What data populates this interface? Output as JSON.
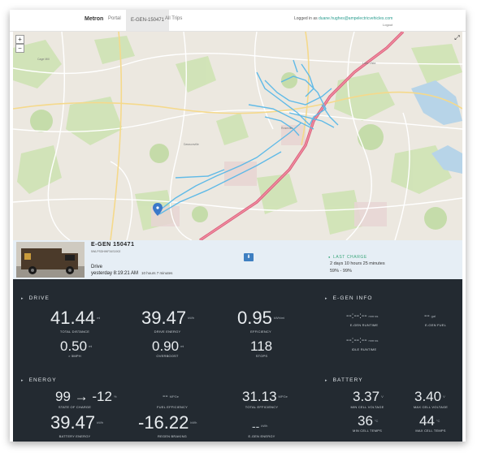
{
  "topbar": {
    "brand": "Metron",
    "nav": [
      {
        "label": "Portal"
      },
      {
        "label": "E-GEN-150471"
      },
      {
        "label": "All Trips"
      }
    ],
    "login_prefix": "Logged in as",
    "login_email": "duane.hughes@ampelectricvehicles.com",
    "logout": "Logout"
  },
  "map": {
    "zoom_in": "+",
    "zoom_out": "−",
    "fullscreen_icon": "expand-icon",
    "route_color": "#59b8e8",
    "marker_color": "#3a78c9"
  },
  "vehicle": {
    "title": "E-GEN 150471",
    "vin": "5WLPSDHWF34S1902",
    "status": "Drive",
    "time": "yesterday 8:19:21 AM",
    "duration": "10 hours 7 minutes",
    "download_icon": "download-icon",
    "last_charge": {
      "title": "LAST CHARGE",
      "ago": "2 days 10 hours 25 minutes",
      "range": "59% - 99%"
    }
  },
  "drive": {
    "title": "DRIVE",
    "total_distance": {
      "value": "41.44",
      "unit": "mi",
      "label": "TOTAL DISTANCE"
    },
    "drive_energy": {
      "value": "39.47",
      "unit": "kWh",
      "label": "DRIVE ENERGY"
    },
    "efficiency": {
      "value": "0.95",
      "unit": "kWh/mi",
      "label": "EFFICIENCY"
    },
    "over_5mph": {
      "value": "0.50",
      "unit": "mi",
      "label": "> 5MPH"
    },
    "overboost": {
      "value": "0.90",
      "unit": "mi",
      "label": "OVERBOOST"
    },
    "stops": {
      "value": "118",
      "label": "STOPS"
    }
  },
  "egen": {
    "title": "E-GEN INFO",
    "runtime": {
      "value": "--:--:--",
      "unit": "mm:ss",
      "label": "E-GEN RUNTIME"
    },
    "fuel": {
      "value": "--",
      "unit": "gal",
      "label": "E-GEN FUEL"
    },
    "idle_runtime": {
      "value": "--:--:--",
      "unit": "mm:ss",
      "label": "IDLE RUNTIME"
    }
  },
  "energy": {
    "title": "ENERGY",
    "soc_start": "99",
    "soc_end": "-12",
    "soc_unit": "%",
    "soc_label": "STATE OF CHARGE",
    "fuel_eff": {
      "value": "--",
      "unit": "MPGe",
      "label": "FUEL EFFICIENCY"
    },
    "total_eff": {
      "value": "31.13",
      "unit": "MPGe",
      "label": "TOTAL EFFICIENCY"
    },
    "battery_energy": {
      "value": "39.47",
      "unit": "kWh",
      "label": "BATTERY ENERGY"
    },
    "regen": {
      "value": "-16.22",
      "unit": "kWh",
      "label": "REGEN BRAKING"
    },
    "egen_energy": {
      "value": "--",
      "unit": "kWh",
      "label": "E-GEN ENERGY"
    }
  },
  "battery": {
    "title": "BATTERY",
    "min_voltage": {
      "value": "3.37",
      "unit": "V",
      "label": "MIN CELL VOLTAGE"
    },
    "max_voltage": {
      "value": "3.40",
      "unit": "V",
      "label": "MAX CELL VOLTAGE"
    },
    "min_temp": {
      "value": "36",
      "unit": "°C",
      "label": "MIN CELL TEMPS"
    },
    "max_temp": {
      "value": "44",
      "unit": "°C",
      "label": "MAX CELL TEMPS"
    }
  }
}
